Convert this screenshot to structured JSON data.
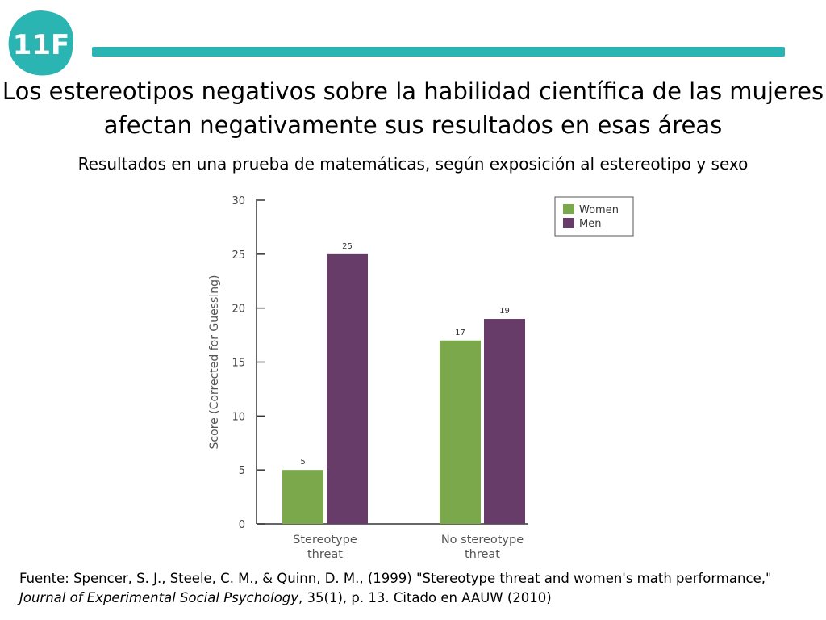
{
  "logo": {
    "text": "11F",
    "color": "#2bb5b2"
  },
  "accent_color": "#2bb5b2",
  "header": {
    "title_line1": "Los estereotipos negativos sobre la habilidad científica de las mujeres",
    "title_line2": "afectan negativamente sus resultados en esas áreas",
    "subtitle": "Resultados en una prueba de matemáticas, según exposición al estereotipo y sexo"
  },
  "chart_data": {
    "type": "bar",
    "categories": [
      "Stereotype threat",
      "No stereotype threat"
    ],
    "category_lines": [
      [
        "Stereotype",
        "threat"
      ],
      [
        "No stereotype",
        "threat"
      ]
    ],
    "series": [
      {
        "name": "Women",
        "values": [
          5,
          17
        ],
        "labels": [
          "5",
          "17"
        ],
        "color": "#7aa84b"
      },
      {
        "name": "Men",
        "values": [
          25,
          19
        ],
        "labels": [
          "25",
          "19"
        ],
        "color": "#673c69"
      }
    ],
    "ylabel": "Score (Corrected for Guessing)",
    "xlabel": "",
    "ylim": [
      0,
      30
    ],
    "yticks": [
      0,
      5,
      10,
      15,
      20,
      25,
      30
    ],
    "legend_position": "top-right",
    "grid": false
  },
  "source": {
    "prefix": "Fuente: Spencer, S. J., Steele, C. M., & Quinn, D. M., (1999) \"Stereotype threat and women's math performance,\" ",
    "journal": "Journal of Experimental Social Psychology",
    "suffix": ", 35(1), p. 13. Citado en AAUW (2010)"
  }
}
